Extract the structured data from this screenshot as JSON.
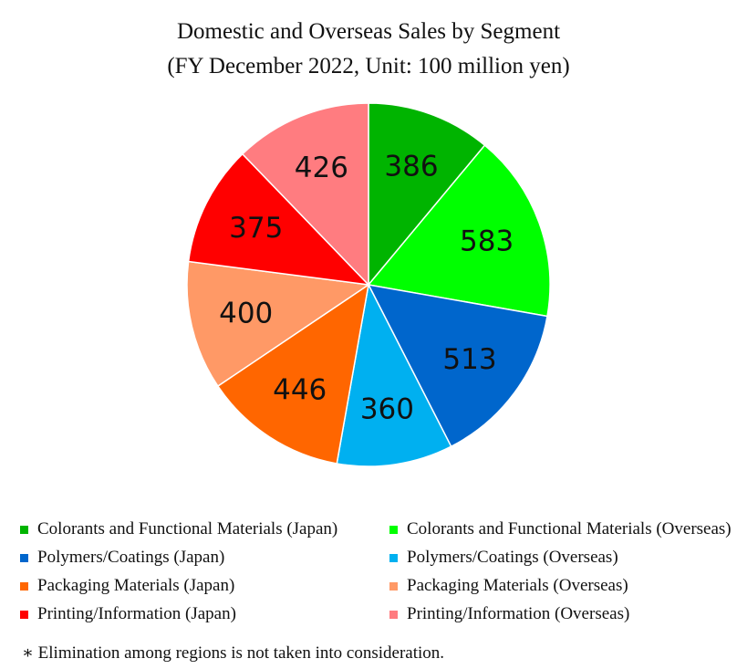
{
  "chart_data": {
    "type": "pie",
    "title": "Domestic and Overseas Sales by Segment",
    "subtitle": "(FY December 2022, Unit: 100 million yen)",
    "slices": [
      {
        "name": "Colorants and Functional Materials (Japan)",
        "value": 386,
        "color": "#00b400"
      },
      {
        "name": "Colorants and Functional Materials (Overseas)",
        "value": 583,
        "color": "#00ff00"
      },
      {
        "name": "Polymers/Coatings (Japan)",
        "value": 513,
        "color": "#0066cc"
      },
      {
        "name": "Polymers/Coatings (Overseas)",
        "value": 360,
        "color": "#00b0f0"
      },
      {
        "name": "Packaging Materials (Japan)",
        "value": 446,
        "color": "#ff6600"
      },
      {
        "name": "Packaging Materials (Overseas)",
        "value": 400,
        "color": "#ff9966"
      },
      {
        "name": "Printing/Information (Japan)",
        "value": 375,
        "color": "#ff0000"
      },
      {
        "name": "Printing/Information (Overseas)",
        "value": 426,
        "color": "#ff7c80"
      }
    ],
    "legend_position": "bottom",
    "start_angle": "12 o'clock, clockwise"
  },
  "note": "∗ Elimination among regions is not taken into consideration."
}
